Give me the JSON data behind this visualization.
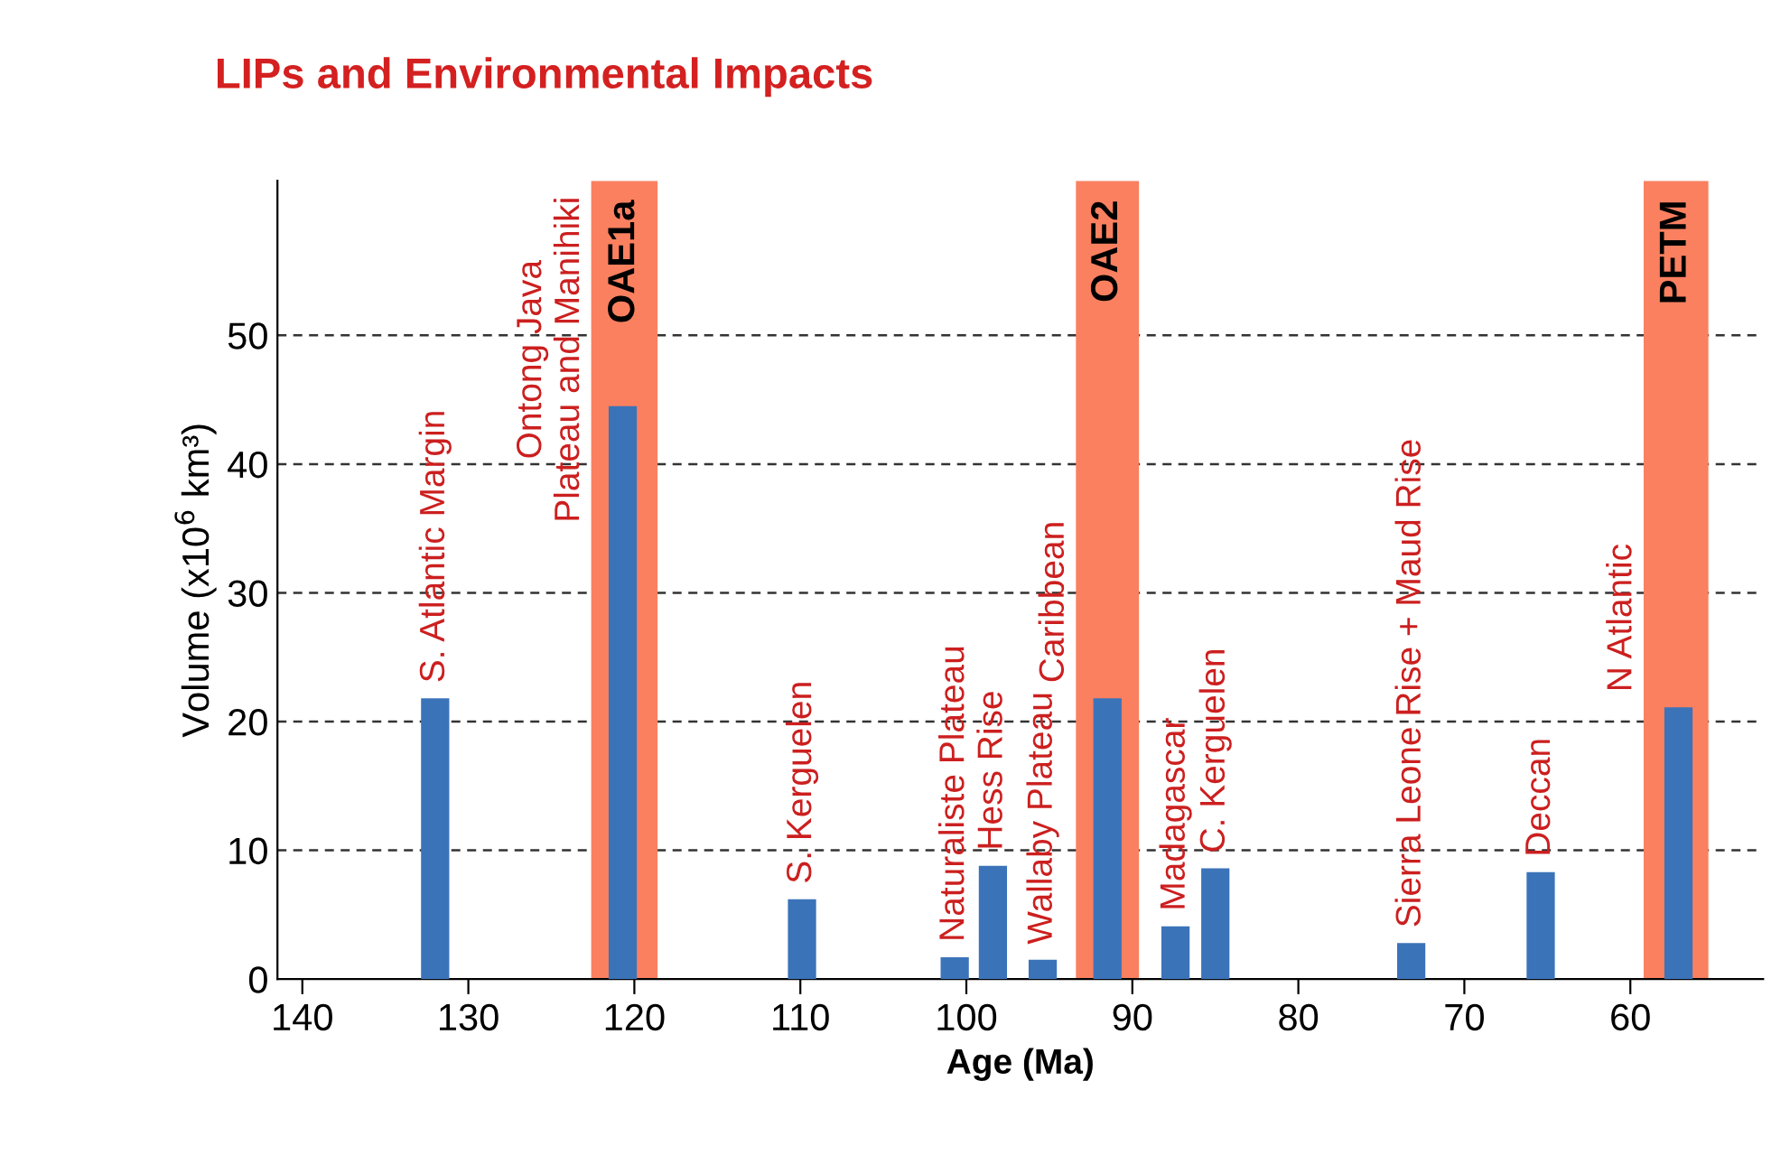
{
  "chart_data": {
    "type": "bar",
    "title": "LIPs and Environmental Impacts",
    "xlabel": "Age (Ma)",
    "ylabel": "Volume (x10$^{6}$ km³)",
    "x": [
      132.0,
      120.7,
      109.9,
      100.7,
      98.4,
      95.4,
      91.5,
      87.4,
      85.0,
      73.2,
      65.4,
      57.1
    ],
    "series": [
      {
        "color": "#3b73b9",
        "values": [
          21.8,
          44.5,
          6.2,
          1.7,
          8.8,
          1.5,
          21.8,
          4.1,
          8.6,
          2.8,
          8.3,
          21.1
        ]
      }
    ],
    "xlim": [
      141.5,
      52
    ],
    "xticks": [
      140,
      130,
      120,
      110,
      100,
      90,
      80,
      70,
      60
    ],
    "ylim": [
      0,
      62
    ],
    "yticks": [
      0,
      10,
      20,
      30,
      40,
      50
    ],
    "grid": "y",
    "bands": [
      {
        "axis": "x",
        "from": 122.6,
        "to": 118.6,
        "label": "OAE1a",
        "color": "#fa8060"
      },
      {
        "axis": "x",
        "from": 93.4,
        "to": 89.6,
        "label": "OAE2",
        "color": "#fa8060"
      },
      {
        "axis": "x",
        "from": 59.2,
        "to": 55.3,
        "label": "PETM",
        "color": "#fa8060"
      }
    ],
    "annotations": [
      {
        "text": "S. Atlantic Margin",
        "x": 132.0,
        "y": 21.8
      },
      {
        "text": "Ontong Java\nPlateau and Manihiki",
        "x": 120.7,
        "y": 44.5
      },
      {
        "text": "S. Kerguelen",
        "x": 109.9,
        "y": 6.2
      },
      {
        "text": "Naturaliste Plateau",
        "x": 100.7,
        "y": 1.7
      },
      {
        "text": "Hess Rise",
        "x": 98.4,
        "y": 8.8
      },
      {
        "text": "Wallaby Plateau",
        "x": 95.4,
        "y": 1.5
      },
      {
        "text": "Caribbean",
        "x": 91.5,
        "y": 21.8
      },
      {
        "text": "Madagascar",
        "x": 87.4,
        "y": 4.1
      },
      {
        "text": "C. Kerguelen",
        "x": 85.0,
        "y": 8.6
      },
      {
        "text": "Sierra Leone Rise + Maud Rise",
        "x": 73.2,
        "y": 2.8
      },
      {
        "text": "Deccan",
        "x": 65.4,
        "y": 8.3
      },
      {
        "text": "N Atlantic",
        "x": 57.1,
        "y": 21.1
      }
    ]
  }
}
